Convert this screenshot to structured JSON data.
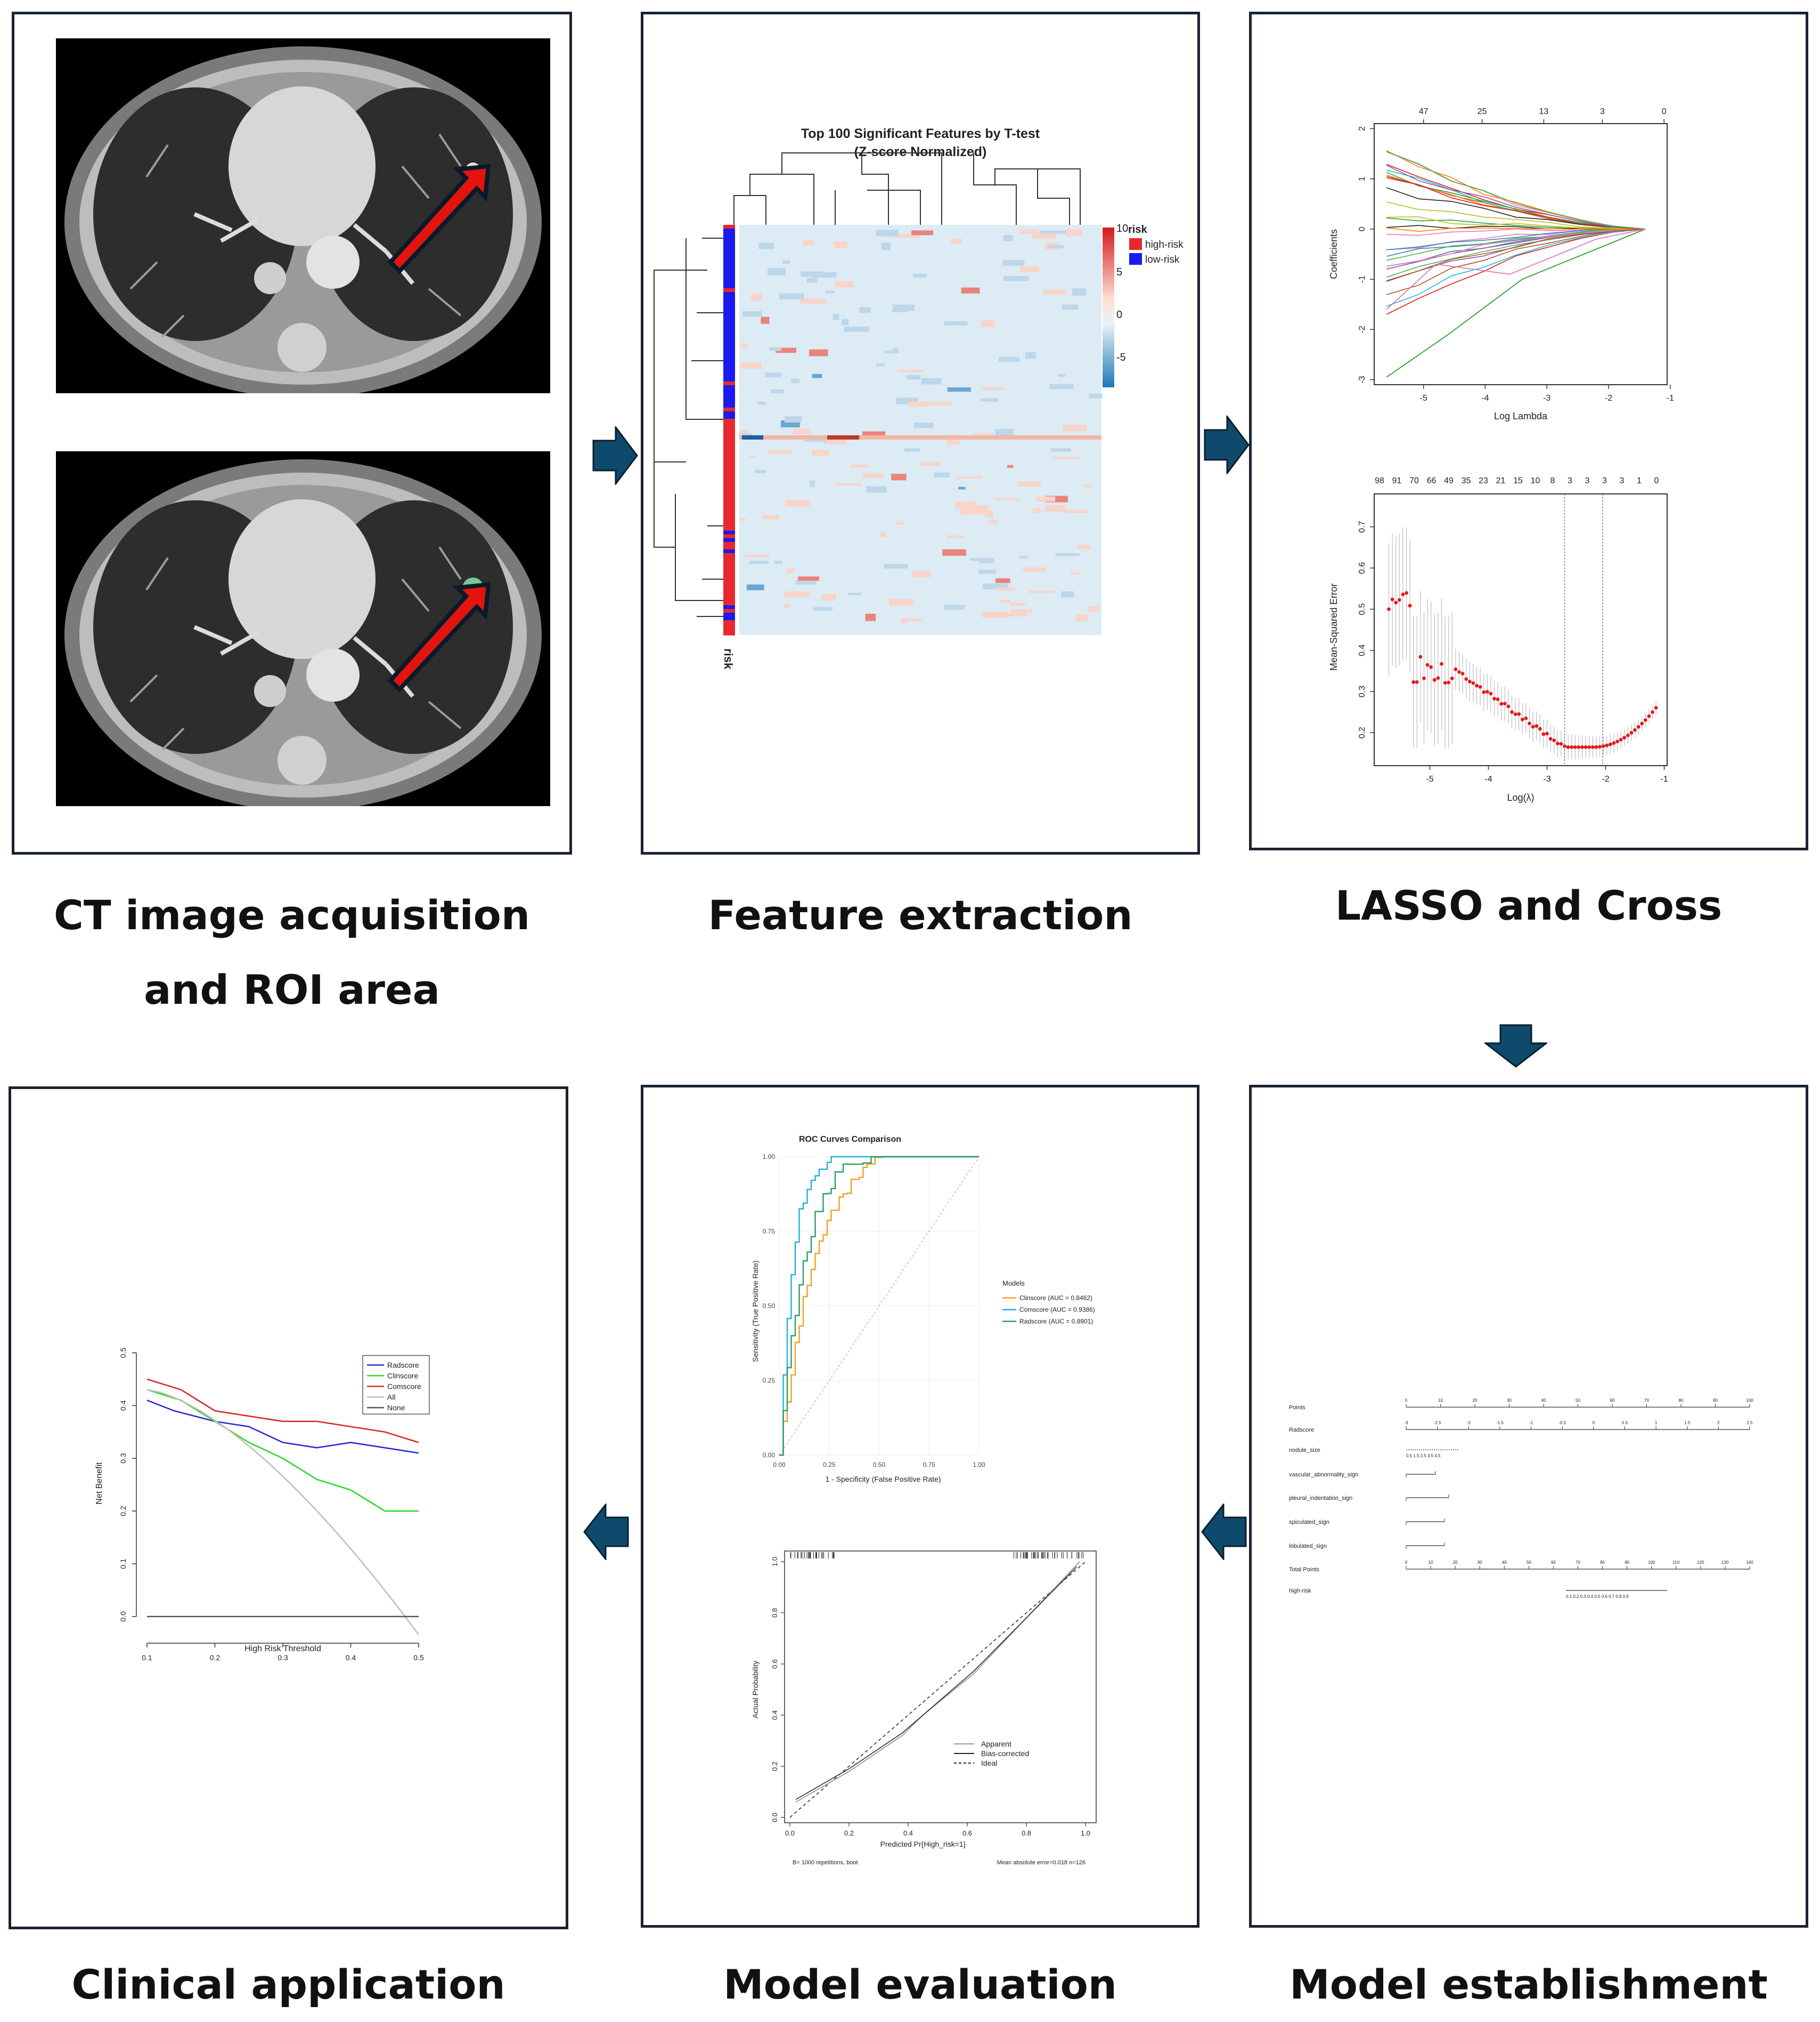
{
  "stages": {
    "ct": {
      "line1": "CT image acquisition",
      "line2": "and ROI area"
    },
    "feature": {
      "label": "Feature extraction"
    },
    "lasso": {
      "label": "LASSO and Cross"
    },
    "clinical": {
      "label": "Clinical application"
    },
    "evaluation": {
      "label": "Model evaluation"
    },
    "establishment": {
      "label": "Model establishment"
    }
  },
  "heatmap": {
    "title1": "Top 100 Significant Features by T-test",
    "title2": "(Z-score Normalized)",
    "legend_title": "risk",
    "legend_high": "high-risk",
    "legend_low": "low-risk",
    "scale_ticks": [
      "10",
      "5",
      "0",
      "-5"
    ],
    "row_label": "risk",
    "colors": {
      "high": "#e8282e",
      "low": "#1a1aee"
    }
  },
  "lasso_coef": {
    "top_ticks": [
      "47",
      "25",
      "13",
      "3",
      "0"
    ],
    "x_ticks": [
      "-5",
      "-4",
      "-3",
      "-2",
      "-1"
    ],
    "y_ticks": [
      "2",
      "1",
      "0",
      "-1",
      "-2",
      "-3"
    ],
    "xlabel": "Log Lambda",
    "ylabel": "Coefficients"
  },
  "lasso_cv": {
    "top_ticks": [
      "98",
      "91",
      "70",
      "66",
      "49",
      "35",
      "23",
      "21",
      "15",
      "10",
      "8",
      "3",
      "3",
      "3",
      "3",
      "1",
      "0"
    ],
    "x_ticks": [
      "-5",
      "-4",
      "-3",
      "-2",
      "-1"
    ],
    "y_ticks": [
      "0.7",
      "0.6",
      "0.5",
      "0.4",
      "0.3",
      "0.2"
    ],
    "xlabel": "Log(λ)",
    "ylabel": "Mean-Squared Error"
  },
  "nomogram": {
    "rows": [
      "Points",
      "Radscore",
      "nodule_size",
      "vascular_abnormality_sign",
      "pleural_indentation_sign",
      "spiculated_sign",
      "lobulated_sign",
      "Total Points",
      "high-risk"
    ],
    "points_ticks": [
      "0",
      "10",
      "20",
      "30",
      "40",
      "50",
      "60",
      "70",
      "80",
      "90",
      "100"
    ],
    "radscore_ticks": [
      "-3",
      "-2.5",
      "-2",
      "-1.5",
      "-1",
      "-0.5",
      "0",
      "0.5",
      "1",
      "1.5",
      "2",
      "2.5"
    ],
    "nodule_ticks": "0.5  1.5  2.5  3.5  4.5",
    "total_ticks": [
      "0",
      "10",
      "20",
      "30",
      "40",
      "50",
      "60",
      "70",
      "80",
      "90",
      "100",
      "110",
      "120",
      "130",
      "140"
    ],
    "risk_ticks": "0.1   0.2   0.3  0.4  0.5  0.6  0.7  0.8   0.9"
  },
  "roc": {
    "title": "ROC Curves Comparison",
    "xlabel": "1 - Specificity (False Positive Rate)",
    "ylabel": "Sensitivity (True Positive Rate)",
    "ticks": [
      "0.00",
      "0.25",
      "0.50",
      "0.75",
      "1.00"
    ],
    "legend_title": "Models",
    "models": [
      {
        "name": "Clinscore (AUC = 0.8462)",
        "auc": 0.8462,
        "color": "#f0a020"
      },
      {
        "name": "Comscore (AUC = 0.9386)",
        "auc": 0.9386,
        "color": "#20b0d8"
      },
      {
        "name": "Radscore (AUC = 0.8901)",
        "auc": 0.8901,
        "color": "#2a9d6a"
      }
    ]
  },
  "calibration": {
    "xlabel": "Predicted Pr{High_risk=1}",
    "ylabel": "Actual Probability",
    "ticks": [
      "0.0",
      "0.2",
      "0.4",
      "0.6",
      "0.8",
      "1.0"
    ],
    "legend": [
      "Apparent",
      "Bias-corrected",
      "Ideal"
    ],
    "footer_left": "B= 1000 repetitions, boot",
    "footer_right": "Mean absolute error=0.018 n=126"
  },
  "dca": {
    "xlabel": "High Risk Threshold",
    "ylabel": "Net Benefit",
    "x_ticks": [
      "0.1",
      "0.2",
      "0.3",
      "0.4",
      "0.5"
    ],
    "y_ticks": [
      "0.5",
      "0.4",
      "0.3",
      "0.2",
      "0.1",
      "0.0"
    ],
    "legend": [
      {
        "name": "Radscore",
        "color": "#2a2ad8"
      },
      {
        "name": "Clinscore",
        "color": "#2ad82a"
      },
      {
        "name": "Comscore",
        "color": "#d82a2a"
      },
      {
        "name": "All",
        "color": "#bfbfbf"
      },
      {
        "name": "None",
        "color": "#555555"
      }
    ]
  }
}
